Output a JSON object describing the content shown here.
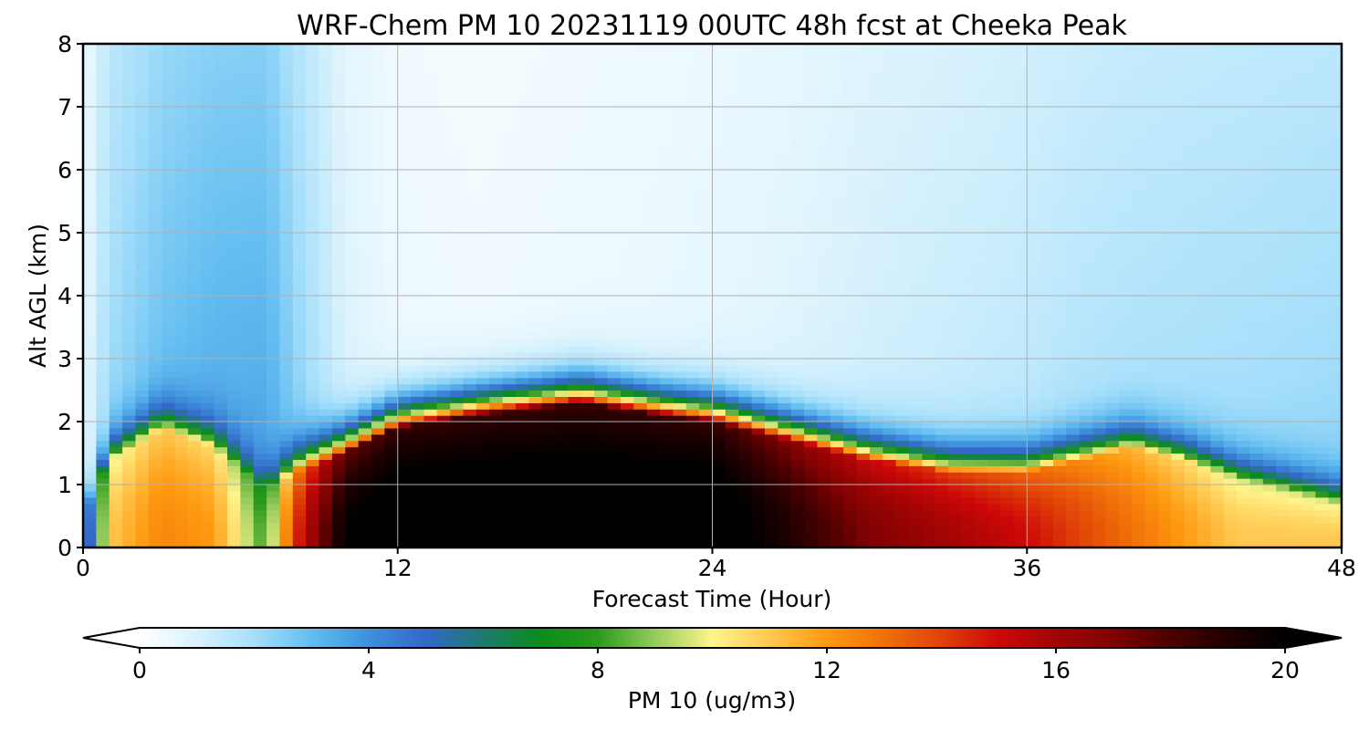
{
  "chart_data": {
    "type": "heatmap",
    "title": "WRF-Chem PM 10  20231119 00UTC 48h fcst at Cheeka Peak",
    "xlabel": "Forecast Time (Hour)",
    "ylabel": "Alt AGL (km)",
    "xlim": [
      0,
      48
    ],
    "ylim": [
      0,
      8
    ],
    "x_ticks": [
      0,
      12,
      24,
      36,
      48
    ],
    "y_ticks": [
      0,
      1,
      2,
      3,
      4,
      5,
      6,
      7,
      8
    ],
    "grid": true,
    "colorbar": {
      "label": "PM 10  (ug/m3)",
      "range": [
        0,
        20
      ],
      "ticks": [
        0,
        4,
        8,
        12,
        16,
        20
      ],
      "extend": "both",
      "orientation": "horizontal",
      "stops": [
        {
          "v": 0,
          "color": "#ffffff"
        },
        {
          "v": 1,
          "color": "#d8f2fd"
        },
        {
          "v": 2,
          "color": "#a6dffb"
        },
        {
          "v": 3,
          "color": "#62bdf0"
        },
        {
          "v": 4,
          "color": "#3e90dc"
        },
        {
          "v": 5,
          "color": "#3468c8"
        },
        {
          "v": 6,
          "color": "#1e7a6e"
        },
        {
          "v": 7,
          "color": "#0a8c1c"
        },
        {
          "v": 8,
          "color": "#2c9a1c"
        },
        {
          "v": 9,
          "color": "#94cc5c"
        },
        {
          "v": 10,
          "color": "#fff48c"
        },
        {
          "v": 11,
          "color": "#ffc850"
        },
        {
          "v": 12,
          "color": "#ff9a10"
        },
        {
          "v": 13,
          "color": "#f07008"
        },
        {
          "v": 14,
          "color": "#e04208"
        },
        {
          "v": 15,
          "color": "#cc0808"
        },
        {
          "v": 16,
          "color": "#a20404"
        },
        {
          "v": 17,
          "color": "#800202"
        },
        {
          "v": 18,
          "color": "#4c0000"
        },
        {
          "v": 19,
          "color": "#200000"
        },
        {
          "v": 20,
          "color": "#000000"
        }
      ]
    },
    "boundary_layer_top_km": {
      "x": [
        0,
        1,
        3,
        5,
        7,
        8,
        10,
        12,
        15,
        19,
        22,
        24,
        27,
        30,
        33,
        36,
        38,
        40,
        42,
        44,
        46,
        48
      ],
      "y": [
        0.5,
        1.4,
        1.9,
        1.6,
        0.9,
        1.2,
        1.5,
        1.9,
        2.1,
        2.3,
        2.1,
        2.0,
        1.7,
        1.4,
        1.2,
        1.2,
        1.4,
        1.6,
        1.4,
        1.1,
        0.9,
        0.7
      ]
    },
    "peak_pm10_ugm3": {
      "x": [
        0,
        1,
        3,
        5,
        7,
        8,
        10,
        12,
        15,
        19,
        22,
        24,
        27,
        30,
        33,
        36,
        38,
        40,
        42,
        44,
        46,
        48
      ],
      "y": [
        3,
        11,
        12.5,
        12,
        8,
        14,
        20,
        21,
        21,
        21,
        21,
        21,
        19,
        17,
        16,
        15,
        14,
        13,
        12,
        11,
        11,
        11
      ]
    },
    "upper_pm10_ugm3": {
      "x": [
        0,
        1,
        3,
        5,
        7,
        8,
        10,
        12,
        15,
        19,
        22,
        24,
        27,
        30,
        33,
        36,
        38,
        40,
        42,
        44,
        46,
        48
      ],
      "y": [
        0.6,
        2.2,
        3.0,
        3.4,
        3.6,
        2.6,
        1.0,
        0.5,
        0.4,
        0.5,
        0.6,
        0.7,
        0.9,
        1.2,
        1.4,
        1.6,
        1.8,
        1.9,
        2.0,
        2.1,
        2.2,
        2.3
      ]
    }
  }
}
